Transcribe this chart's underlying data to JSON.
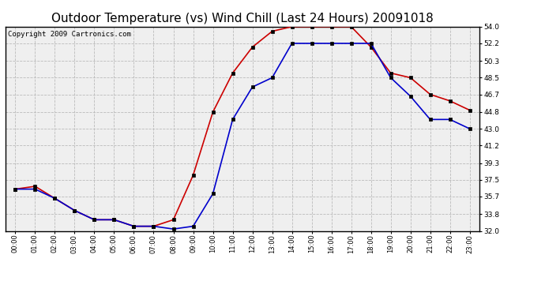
{
  "title": "Outdoor Temperature (vs) Wind Chill (Last 24 Hours) 20091018",
  "copyright": "Copyright 2009 Cartronics.com",
  "hours": [
    "00:00",
    "01:00",
    "02:00",
    "03:00",
    "04:00",
    "05:00",
    "06:00",
    "07:00",
    "08:00",
    "09:00",
    "10:00",
    "11:00",
    "12:00",
    "13:00",
    "14:00",
    "15:00",
    "16:00",
    "17:00",
    "18:00",
    "19:00",
    "20:00",
    "21:00",
    "22:00",
    "23:00"
  ],
  "temp_red": [
    36.5,
    36.8,
    35.5,
    34.2,
    33.2,
    33.2,
    32.5,
    32.5,
    33.2,
    38.0,
    44.8,
    49.0,
    51.8,
    53.5,
    54.0,
    54.0,
    54.0,
    54.0,
    51.8,
    49.0,
    48.5,
    46.7,
    46.0,
    45.0
  ],
  "wind_chill_blue": [
    36.5,
    36.5,
    35.5,
    34.2,
    33.2,
    33.2,
    32.5,
    32.5,
    32.2,
    32.5,
    36.0,
    44.0,
    47.5,
    48.5,
    52.2,
    52.2,
    52.2,
    52.2,
    52.2,
    48.5,
    46.5,
    44.0,
    44.0,
    43.0
  ],
  "ylim": [
    32.0,
    54.0
  ],
  "yticks": [
    32.0,
    33.8,
    35.7,
    37.5,
    39.3,
    41.2,
    43.0,
    44.8,
    46.7,
    48.5,
    50.3,
    52.2,
    54.0
  ],
  "red_color": "#cc0000",
  "blue_color": "#0000cc",
  "grid_color": "#bbbbbb",
  "bg_color": "#ffffff",
  "plot_bg_color": "#efefef",
  "title_fontsize": 11,
  "copyright_fontsize": 6.5
}
